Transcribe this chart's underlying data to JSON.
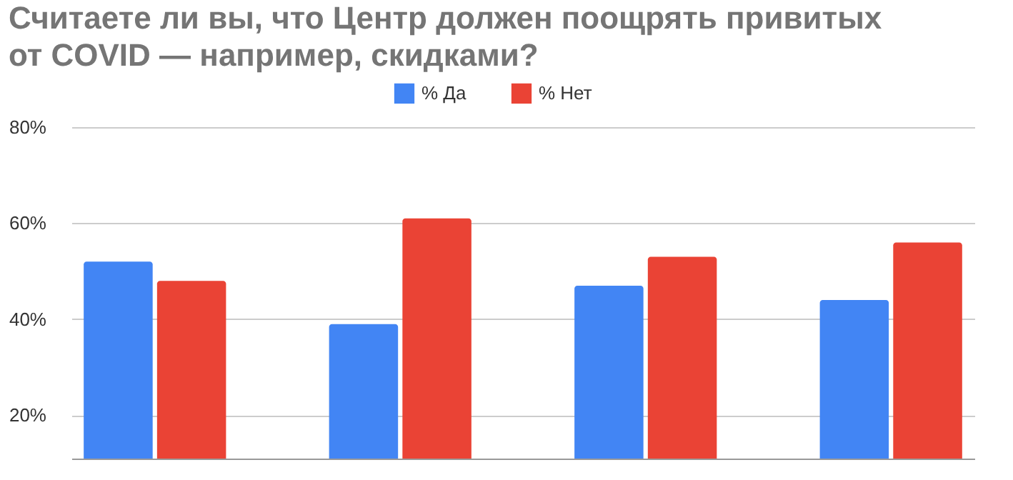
{
  "chart_data": {
    "type": "bar",
    "title": "Считаете ли вы, что Центр должен поощрять привитых\nот COVID  — например, скидками?",
    "categories": [
      null,
      null,
      null,
      null
    ],
    "series": [
      {
        "name": "% Да",
        "color": "#4285f4",
        "values": [
          52,
          39,
          47,
          44
        ]
      },
      {
        "name": "% Нет",
        "color": "#ea4335",
        "values": [
          48,
          61,
          53,
          56
        ]
      }
    ],
    "ylim": [
      11,
      80
    ],
    "yticks": [
      {
        "value": 20,
        "label": "20%"
      },
      {
        "value": 40,
        "label": "40%"
      },
      {
        "value": 60,
        "label": "60%"
      },
      {
        "value": 80,
        "label": "80%"
      }
    ],
    "grid": "y",
    "legend": "top",
    "tick_labels": "y"
  }
}
